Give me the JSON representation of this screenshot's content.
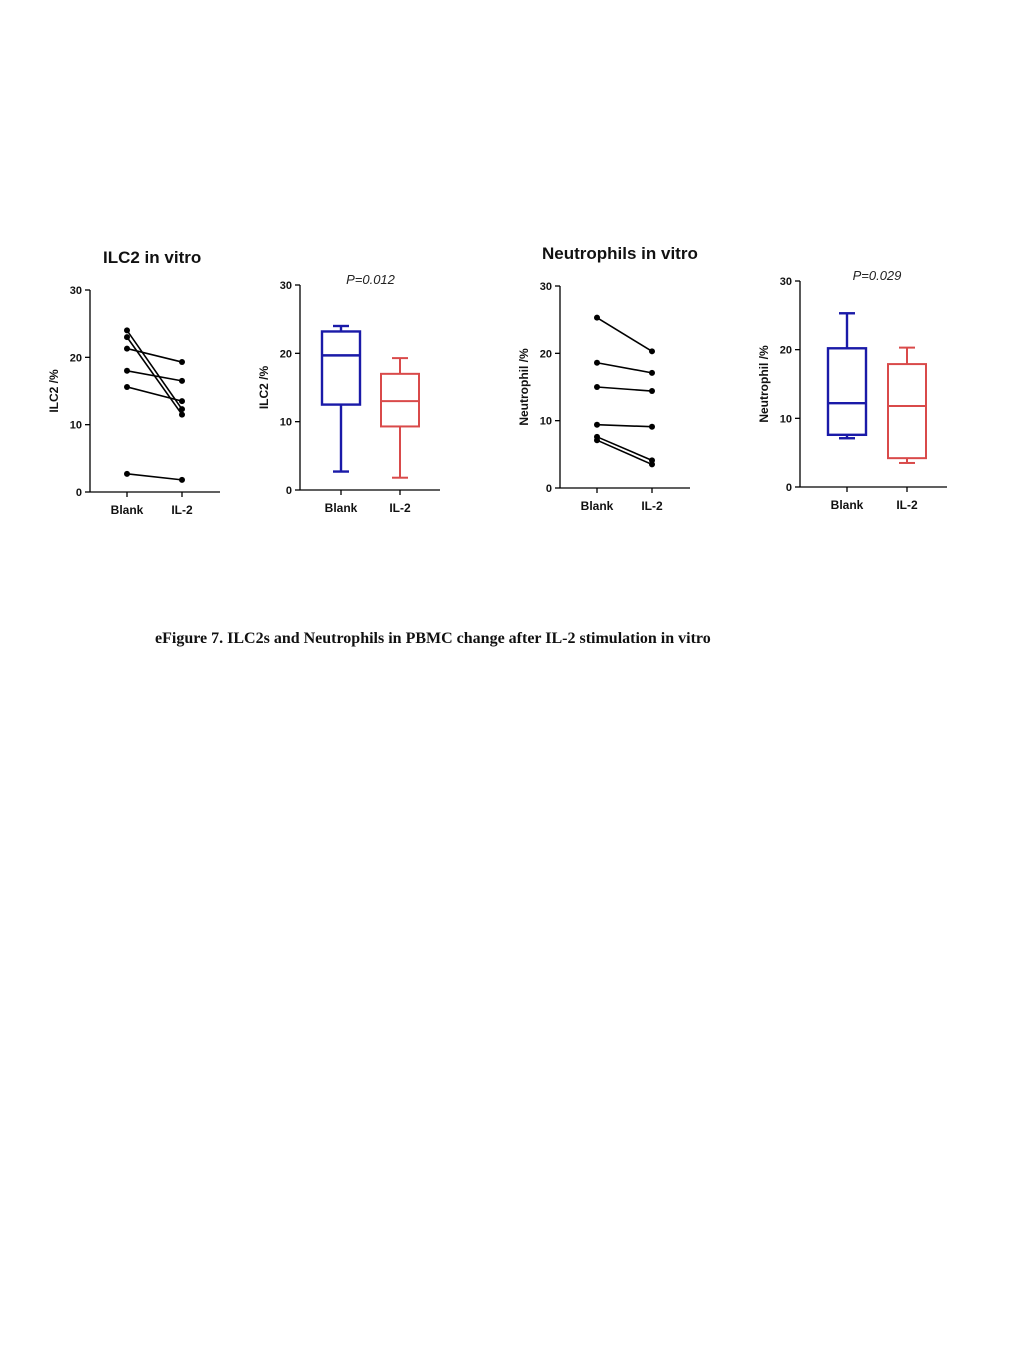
{
  "titles": {
    "left": "ILC2 in vitro",
    "right": "Neutrophils in vitro"
  },
  "caption": "eFigure 7. ILC2s and Neutrophils in PBMC change after IL-2 stimulation in vitro",
  "colors": {
    "points": "#000000",
    "blank_box": "#1a1aa8",
    "il2_box": "#d94a4a"
  },
  "chart_data": [
    {
      "type": "line",
      "subtype": "paired-dot",
      "categories": [
        "Blank",
        "IL-2"
      ],
      "ylabel": "ILC2 /%",
      "ylim": [
        0,
        30
      ],
      "yticks": [
        0,
        10,
        20,
        30
      ],
      "pairs": [
        [
          24.0,
          12.3
        ],
        [
          23.0,
          11.5
        ],
        [
          21.3,
          19.3
        ],
        [
          18.0,
          16.5
        ],
        [
          15.6,
          13.5
        ],
        [
          2.7,
          1.8
        ]
      ]
    },
    {
      "type": "box",
      "categories": [
        "Blank",
        "IL-2"
      ],
      "ylabel": "ILC2 /%",
      "annotation": "P=0.012",
      "ylim": [
        0,
        30
      ],
      "yticks": [
        0,
        10,
        20,
        30
      ],
      "boxes": [
        {
          "min": 2.7,
          "q1": 12.5,
          "median": 19.7,
          "q3": 23.2,
          "max": 24.0
        },
        {
          "min": 1.8,
          "q1": 9.3,
          "median": 13.0,
          "q3": 17.0,
          "max": 19.3
        }
      ]
    },
    {
      "type": "line",
      "subtype": "paired-dot",
      "categories": [
        "Blank",
        "IL-2"
      ],
      "ylabel": "Neutrophil /%",
      "ylim": [
        0,
        30
      ],
      "yticks": [
        0,
        10,
        20,
        30
      ],
      "pairs": [
        [
          25.3,
          20.3
        ],
        [
          18.6,
          17.1
        ],
        [
          15.0,
          14.4
        ],
        [
          9.4,
          9.1
        ],
        [
          7.6,
          4.1
        ],
        [
          7.1,
          3.5
        ]
      ]
    },
    {
      "type": "box",
      "categories": [
        "Blank",
        "IL-2"
      ],
      "ylabel": "Neutrophil /%",
      "annotation": "P=0.029",
      "ylim": [
        0,
        30
      ],
      "yticks": [
        0,
        10,
        20,
        30
      ],
      "boxes": [
        {
          "min": 7.1,
          "q1": 7.6,
          "median": 12.2,
          "q3": 20.2,
          "max": 25.3
        },
        {
          "min": 3.5,
          "q1": 4.2,
          "median": 11.8,
          "q3": 17.9,
          "max": 20.3
        }
      ]
    }
  ]
}
